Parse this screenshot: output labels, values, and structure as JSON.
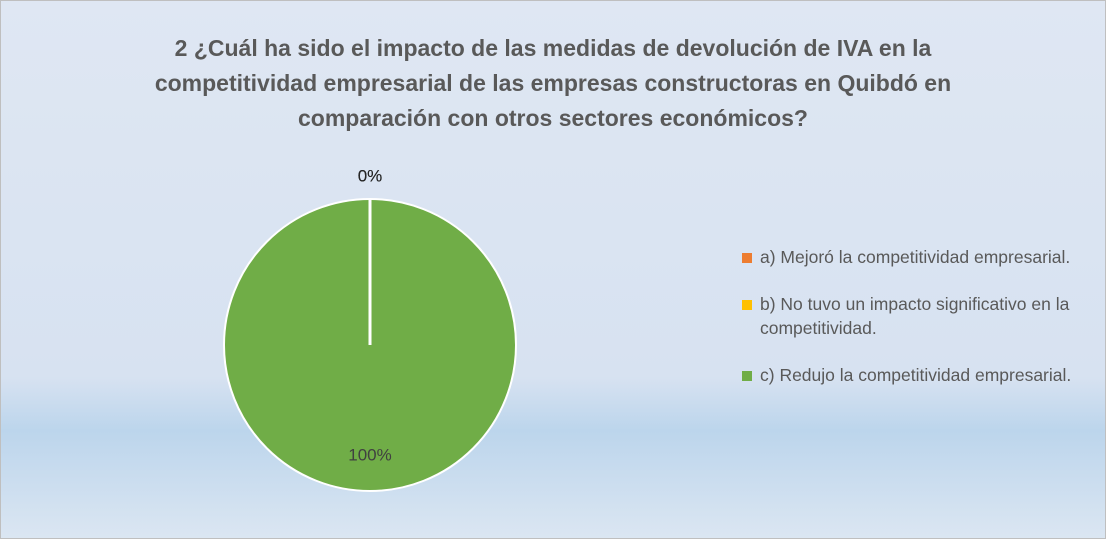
{
  "chart_data": {
    "type": "pie",
    "title": "2 ¿Cuál ha sido el impacto de las medidas de devolución de IVA en la competitividad empresarial de las empresas constructoras en Quibdó en comparación con otros sectores económicos?",
    "categories": [
      "a) Mejoró la competitividad empresarial.",
      "b) No tuvo un impacto significativo en la competitividad.",
      "c) Redujo la competitividad empresarial."
    ],
    "values": [
      0,
      0,
      100
    ],
    "value_labels": [
      "0%",
      "0%",
      "100%"
    ],
    "colors": [
      "#ed7d31",
      "#ffc000",
      "#70ad47"
    ],
    "legend": "right"
  }
}
